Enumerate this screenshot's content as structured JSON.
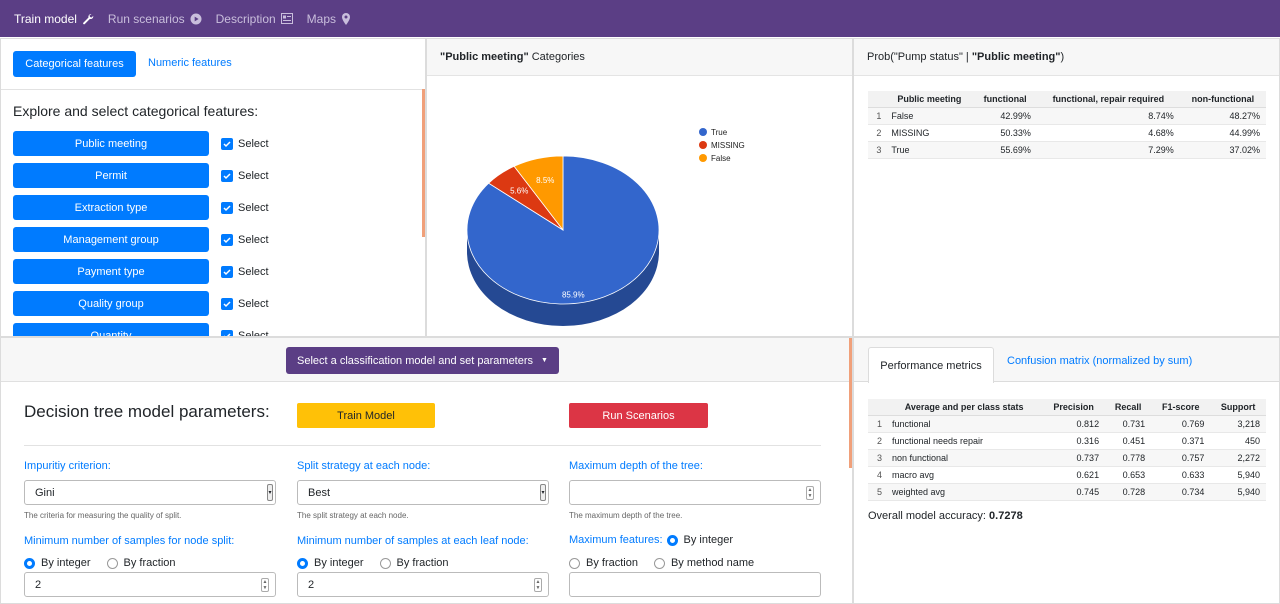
{
  "nav": {
    "train_model": "Train model",
    "run_scenarios": "Run scenarios",
    "description": "Description",
    "maps": "Maps"
  },
  "features_panel": {
    "tab_categorical": "Categorical features",
    "tab_numeric": "Numeric features",
    "heading": "Explore and select categorical features:",
    "select_label": "Select",
    "features": [
      "Public meeting",
      "Permit",
      "Extraction type",
      "Management group",
      "Payment type",
      "Quality group",
      "Quantity"
    ]
  },
  "pie_panel": {
    "title_bold": "\"Public meeting\"",
    "title_rest": " Categories"
  },
  "chart_data": {
    "type": "pie",
    "title": "\"Public meeting\" Categories",
    "labels": [
      "True",
      "MISSING",
      "False"
    ],
    "values": [
      85.9,
      5.6,
      8.5
    ],
    "value_labels": [
      "85.9%",
      "5.6%",
      "8.5%"
    ],
    "colors": [
      "#3366cc",
      "#dc3912",
      "#ff9900"
    ],
    "legend_position": "top-right"
  },
  "prob_panel": {
    "title_pre": "Prob(\"Pump status\" | ",
    "title_bold": "\"Public meeting\"",
    "title_post": ")",
    "columns": [
      "",
      "Public meeting",
      "functional",
      "functional, repair required",
      "non-functional"
    ],
    "rows": [
      [
        "1",
        "False",
        "42.99%",
        "8.74%",
        "48.27%"
      ],
      [
        "2",
        "MISSING",
        "50.33%",
        "4.68%",
        "44.99%"
      ],
      [
        "3",
        "True",
        "55.69%",
        "7.29%",
        "37.02%"
      ]
    ]
  },
  "model_panel": {
    "dropdown_label": "Select a classification model and set parameters",
    "heading": "Decision tree model parameters:",
    "train_button": "Train Model",
    "run_button": "Run Scenarios",
    "impurity_label": "Impuritiy criterion:",
    "impurity_value": "Gini",
    "impurity_help": "The criteria for measuring the quality of split.",
    "split_label": "Split strategy at each node:",
    "split_value": "Best",
    "split_help": "The split strategy at each node.",
    "depth_label": "Maximum depth of the tree:",
    "depth_value": "",
    "depth_help": "The maximum depth of the tree.",
    "min_split_label": "Minimum number of samples for node split:",
    "min_leaf_label": "Minimum number of samples at each leaf node:",
    "max_features_label": "Maximum features:",
    "by_integer": "By integer",
    "by_fraction": "By fraction",
    "by_method": "By method name",
    "min_split_value": "2",
    "min_leaf_value": "2",
    "max_features_value": ""
  },
  "metrics_panel": {
    "tab_performance": "Performance metrics",
    "tab_confusion": "Confusion matrix (normalized by sum)",
    "columns": [
      "",
      "Average and per class stats",
      "Precision",
      "Recall",
      "F1-score",
      "Support"
    ],
    "rows": [
      [
        "1",
        "functional",
        "0.812",
        "0.731",
        "0.769",
        "3,218"
      ],
      [
        "2",
        "functional needs repair",
        "0.316",
        "0.451",
        "0.371",
        "450"
      ],
      [
        "3",
        "non functional",
        "0.737",
        "0.778",
        "0.757",
        "2,272"
      ],
      [
        "4",
        "macro avg",
        "0.621",
        "0.653",
        "0.633",
        "5,940"
      ],
      [
        "5",
        "weighted avg",
        "0.745",
        "0.728",
        "0.734",
        "5,940"
      ]
    ],
    "accuracy_label": "Overall model accuracy: ",
    "accuracy_value": "0.7278"
  }
}
